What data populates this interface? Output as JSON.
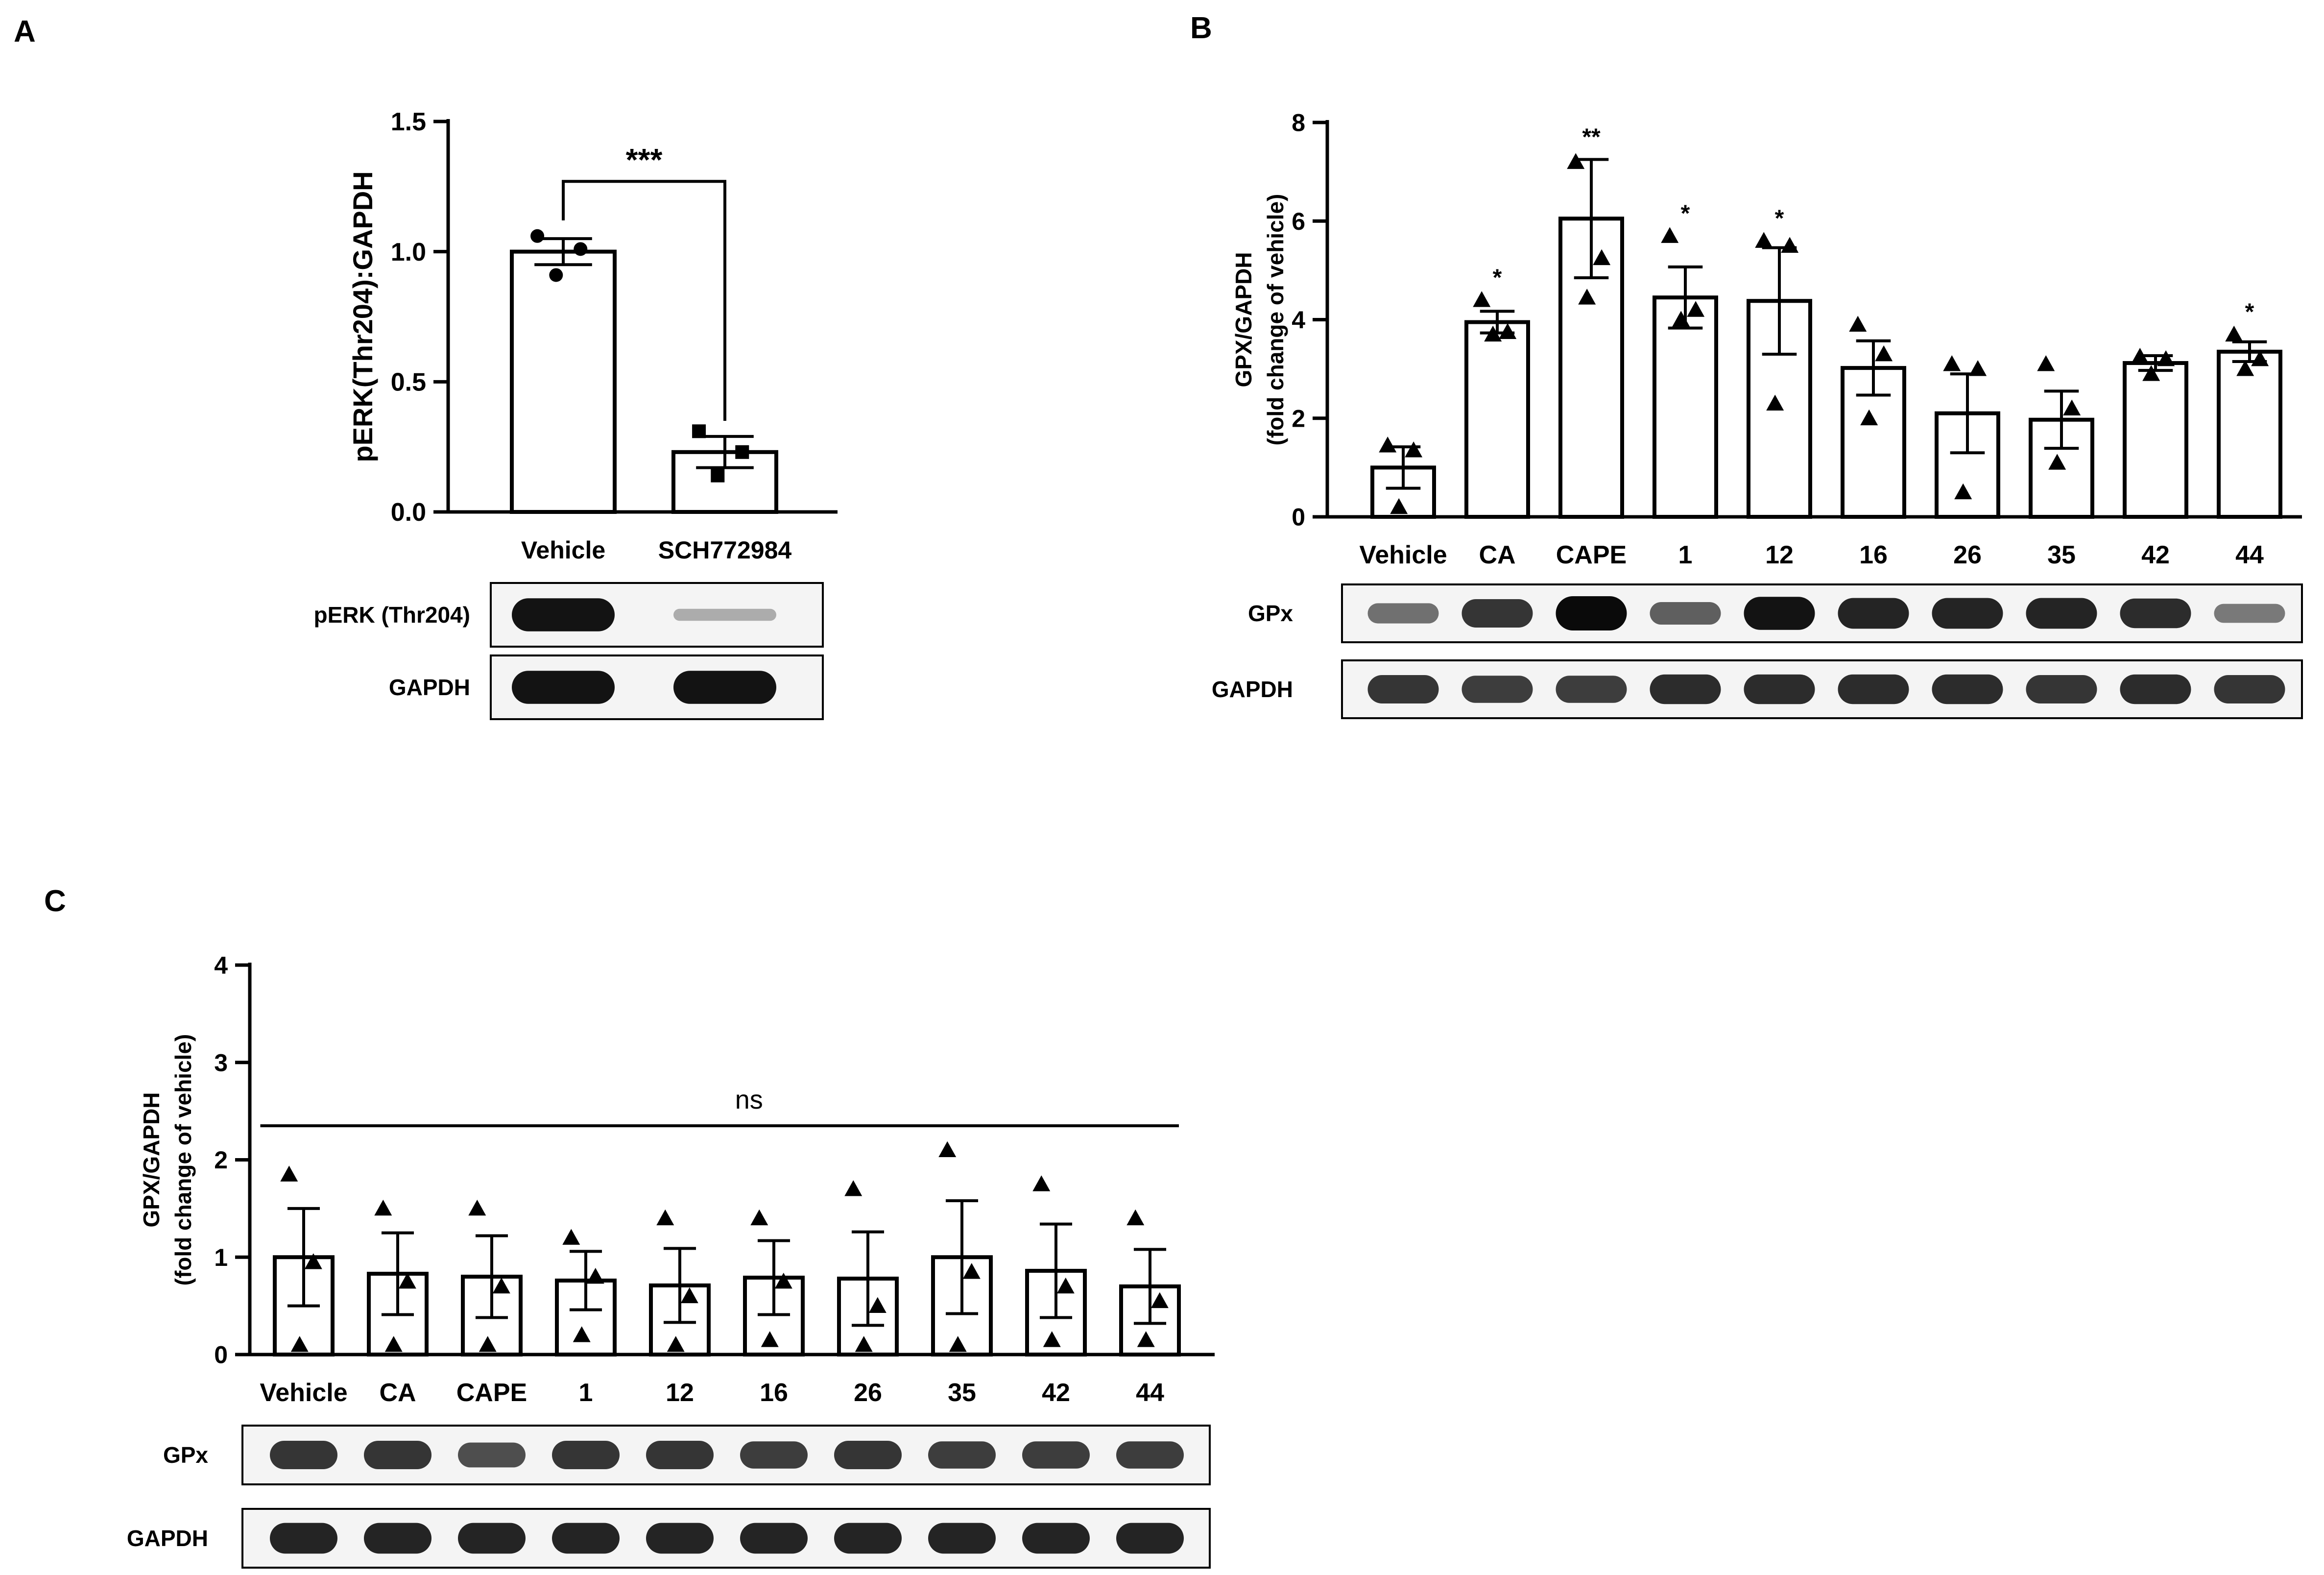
{
  "panels": [
    {
      "id": "A",
      "label": "A"
    },
    {
      "id": "B",
      "label": "B"
    },
    {
      "id": "C",
      "label": "C"
    }
  ],
  "chart_data": [
    {
      "panel": "A",
      "type": "bar",
      "ylabel": "pERK(Thr204):GAPDH",
      "ylim": [
        0,
        1.5
      ],
      "yticks": [
        "0.0",
        "0.5",
        "1.0",
        "1.5"
      ],
      "categories": [
        "Vehicle",
        "SCH772984"
      ],
      "values": [
        1.0,
        0.23
      ],
      "errors": [
        0.05,
        0.06
      ],
      "points": [
        [
          1.06,
          1.01,
          0.91
        ],
        [
          0.31,
          0.23,
          0.14
        ]
      ],
      "point_shapes": [
        "circle",
        "square"
      ],
      "significance": [
        {
          "from": "Vehicle",
          "to": "SCH772984",
          "text": "***"
        }
      ],
      "grid": false
    },
    {
      "panel": "B",
      "type": "bar",
      "ylabel": "GPX/GAPDH",
      "ylabel2": "(fold change of vehicle)",
      "ylim": [
        0,
        8
      ],
      "yticks": [
        "0",
        "2",
        "4",
        "6",
        "8"
      ],
      "categories": [
        "Vehicle",
        "CA",
        "CAPE",
        "1",
        "12",
        "16",
        "26",
        "35",
        "42",
        "44"
      ],
      "values": [
        1.0,
        3.95,
        6.05,
        4.45,
        4.38,
        3.02,
        2.1,
        1.97,
        3.12,
        3.35
      ],
      "errors": [
        0.42,
        0.22,
        1.2,
        0.62,
        1.08,
        0.55,
        0.8,
        0.58,
        0.15,
        0.2
      ],
      "points": [
        [
          1.45,
          1.35,
          0.2
        ],
        [
          4.4,
          3.75,
          3.7
        ],
        [
          7.2,
          5.25,
          4.45
        ],
        [
          5.7,
          4.2,
          4.0
        ],
        [
          5.6,
          5.5,
          2.3
        ],
        [
          3.9,
          3.3,
          2.0
        ],
        [
          3.1,
          3.0,
          0.5
        ],
        [
          3.1,
          2.2,
          1.1
        ],
        [
          3.25,
          3.2,
          2.9
        ],
        [
          3.7,
          3.2,
          3.0
        ]
      ],
      "point_shape": "triangle",
      "annotations": [
        "",
        "*",
        "**",
        "*",
        "*",
        "",
        "",
        "",
        "",
        "*"
      ],
      "grid": false
    },
    {
      "panel": "C",
      "type": "bar",
      "ylabel": "GPX/GAPDH",
      "ylabel2": "(fold change of vehicle)",
      "ylim": [
        0,
        4
      ],
      "yticks": [
        "0",
        "1",
        "2",
        "3",
        "4"
      ],
      "categories": [
        "Vehicle",
        "CA",
        "CAPE",
        "1",
        "12",
        "16",
        "26",
        "35",
        "42",
        "44"
      ],
      "values": [
        1.0,
        0.83,
        0.8,
        0.76,
        0.71,
        0.79,
        0.78,
        1.0,
        0.86,
        0.7
      ],
      "errors": [
        0.5,
        0.42,
        0.42,
        0.3,
        0.38,
        0.38,
        0.48,
        0.58,
        0.48,
        0.38
      ],
      "points": [
        [
          1.85,
          0.95,
          0.1
        ],
        [
          1.5,
          0.75,
          0.1
        ],
        [
          1.5,
          0.7,
          0.1
        ],
        [
          1.2,
          0.8,
          0.2
        ],
        [
          1.4,
          0.6,
          0.1
        ],
        [
          1.4,
          0.75,
          0.15
        ],
        [
          1.7,
          0.5,
          0.1
        ],
        [
          2.1,
          0.85,
          0.1
        ],
        [
          1.75,
          0.7,
          0.15
        ],
        [
          1.4,
          0.55,
          0.15
        ]
      ],
      "point_shape": "triangle",
      "significance_line": {
        "text": "ns",
        "from": "Vehicle",
        "to": "44"
      },
      "grid": false
    }
  ],
  "blots": [
    {
      "panel": "A",
      "rows": [
        {
          "label": "pERK (Thr204)",
          "intensities": [
            0.95,
            0.05
          ]
        },
        {
          "label": "GAPDH",
          "intensities": [
            0.95,
            0.95
          ]
        }
      ]
    },
    {
      "panel": "B",
      "rows": [
        {
          "label": "GPx",
          "intensities": [
            0.4,
            0.75,
            1.0,
            0.5,
            0.95,
            0.85,
            0.85,
            0.85,
            0.8,
            0.35
          ]
        },
        {
          "label": "GAPDH",
          "intensities": [
            0.75,
            0.7,
            0.7,
            0.8,
            0.8,
            0.8,
            0.8,
            0.75,
            0.8,
            0.75
          ]
        }
      ]
    },
    {
      "panel": "C",
      "rows": [
        {
          "label": "GPx",
          "intensities": [
            0.75,
            0.75,
            0.6,
            0.75,
            0.75,
            0.7,
            0.75,
            0.7,
            0.7,
            0.7
          ]
        },
        {
          "label": "GAPDH",
          "intensities": [
            0.85,
            0.85,
            0.85,
            0.85,
            0.85,
            0.85,
            0.85,
            0.85,
            0.85,
            0.85
          ]
        }
      ]
    }
  ]
}
